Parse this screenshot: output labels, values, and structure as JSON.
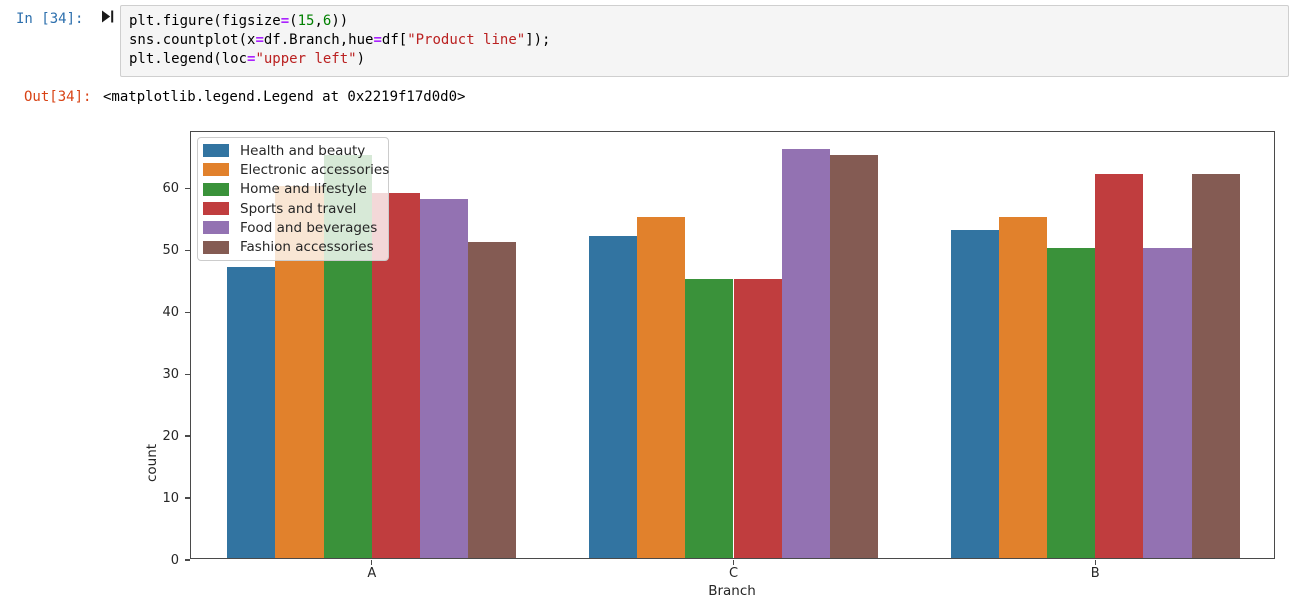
{
  "notebook": {
    "input_prompt": "In [34]:",
    "output_prompt": "Out[34]:",
    "output_text": "<matplotlib.legend.Legend at 0x2219f17d0d0>",
    "run_icon": "run-cell-play-bar-icon",
    "code_lines": [
      [
        {
          "t": "plt.figure(figsize",
          "c": "plain"
        },
        {
          "t": "=",
          "c": "op"
        },
        {
          "t": "(",
          "c": "plain"
        },
        {
          "t": "15",
          "c": "num"
        },
        {
          "t": ",",
          "c": "plain"
        },
        {
          "t": "6",
          "c": "num"
        },
        {
          "t": "))",
          "c": "plain"
        }
      ],
      [
        {
          "t": "sns.countplot(x",
          "c": "plain"
        },
        {
          "t": "=",
          "c": "op"
        },
        {
          "t": "df.Branch,hue",
          "c": "plain"
        },
        {
          "t": "=",
          "c": "op"
        },
        {
          "t": "df[",
          "c": "plain"
        },
        {
          "t": "\"Product line\"",
          "c": "str"
        },
        {
          "t": "]);",
          "c": "plain"
        }
      ],
      [
        {
          "t": "plt.legend(loc",
          "c": "plain"
        },
        {
          "t": "=",
          "c": "op"
        },
        {
          "t": "\"upper left\"",
          "c": "str"
        },
        {
          "t": ")",
          "c": "plain"
        }
      ]
    ],
    "colors": {
      "in_prompt": "#2c6fad",
      "out_prompt": "#d84315",
      "cell_bg": "#f5f5f5",
      "cell_border": "#cfcfcf"
    }
  },
  "chart_data": {
    "type": "bar",
    "title": "",
    "categories": [
      "A",
      "C",
      "B"
    ],
    "series": [
      {
        "name": "Health and beauty",
        "color": "#3274a1",
        "values": [
          47,
          52,
          53
        ]
      },
      {
        "name": "Electronic accessories",
        "color": "#e1812c",
        "values": [
          60,
          55,
          55
        ]
      },
      {
        "name": "Home and lifestyle",
        "color": "#3a923a",
        "values": [
          65,
          45,
          50
        ]
      },
      {
        "name": "Sports and travel",
        "color": "#c03d3e",
        "values": [
          59,
          45,
          62
        ]
      },
      {
        "name": "Food and beverages",
        "color": "#9372b2",
        "values": [
          58,
          66,
          50
        ]
      },
      {
        "name": "Fashion accessories",
        "color": "#845b53",
        "values": [
          51,
          65,
          62
        ]
      }
    ],
    "xlabel": "Branch",
    "ylabel": "count",
    "ylim": [
      0,
      69.1
    ],
    "yticks": [
      0,
      10,
      20,
      30,
      40,
      50,
      60
    ],
    "legend_position": "upper left",
    "grid": false,
    "group_width_fraction": 0.8
  }
}
